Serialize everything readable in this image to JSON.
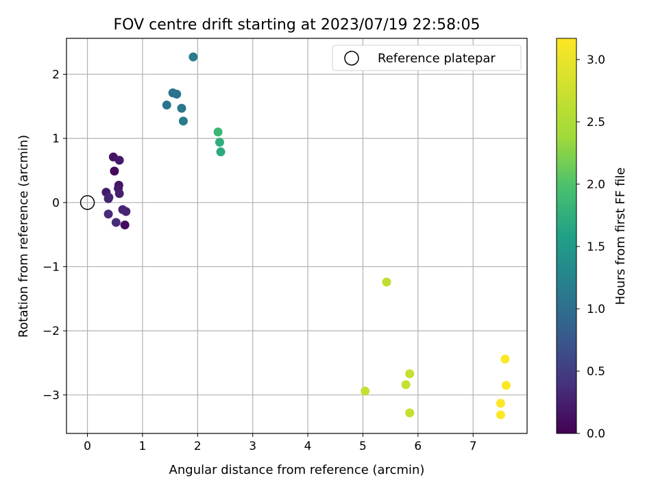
{
  "chart_data": {
    "type": "scatter",
    "title": "FOV centre drift starting at 2023/07/19 22:58:05",
    "xlabel": "Angular distance from reference (arcmin)",
    "ylabel": "Rotation from reference (arcmin)",
    "xlim": [
      -0.38,
      7.98
    ],
    "ylim": [
      -3.6,
      2.56
    ],
    "xticks": [
      0,
      1,
      2,
      3,
      4,
      5,
      6,
      7
    ],
    "yticks": [
      -3,
      -2,
      -1,
      0,
      1,
      2
    ],
    "grid": true,
    "legend": {
      "position": "top-right",
      "entries": [
        "Reference platepar"
      ]
    },
    "reference_point": {
      "x": 0,
      "y": 0,
      "style": "hollow circle"
    },
    "colorbar": {
      "label": "Hours from first FF file",
      "colormap": "viridis",
      "range": [
        0,
        3.17
      ],
      "ticks": [
        0.0,
        0.5,
        1.0,
        1.5,
        2.0,
        2.5,
        3.0
      ],
      "tick_labels": [
        "0.0",
        "0.5",
        "1.0",
        "1.5",
        "2.0",
        "2.5",
        "3.0"
      ]
    },
    "points": [
      {
        "x": 0.47,
        "y": 0.71,
        "h": 0.15
      },
      {
        "x": 0.58,
        "y": 0.66,
        "h": 0.2
      },
      {
        "x": 0.49,
        "y": 0.49,
        "h": 0.05
      },
      {
        "x": 0.57,
        "y": 0.27,
        "h": 0.15
      },
      {
        "x": 0.56,
        "y": 0.22,
        "h": 0.2
      },
      {
        "x": 0.58,
        "y": 0.14,
        "h": 0.25
      },
      {
        "x": 0.34,
        "y": 0.16,
        "h": 0.2
      },
      {
        "x": 0.38,
        "y": 0.06,
        "h": 0.25
      },
      {
        "x": 0.39,
        "y": 0.08,
        "h": 0.3
      },
      {
        "x": 0.64,
        "y": -0.11,
        "h": 0.3
      },
      {
        "x": 0.7,
        "y": -0.14,
        "h": 0.3
      },
      {
        "x": 0.38,
        "y": -0.18,
        "h": 0.35
      },
      {
        "x": 0.52,
        "y": -0.31,
        "h": 0.35
      },
      {
        "x": 0.68,
        "y": -0.35,
        "h": 0.1
      },
      {
        "x": 1.92,
        "y": 2.27,
        "h": 1.15
      },
      {
        "x": 1.55,
        "y": 1.71,
        "h": 1.05
      },
      {
        "x": 1.62,
        "y": 1.69,
        "h": 1.05
      },
      {
        "x": 1.44,
        "y": 1.52,
        "h": 1.05
      },
      {
        "x": 1.71,
        "y": 1.47,
        "h": 1.1
      },
      {
        "x": 1.74,
        "y": 1.27,
        "h": 1.15
      },
      {
        "x": 2.37,
        "y": 1.1,
        "h": 1.85
      },
      {
        "x": 2.4,
        "y": 0.94,
        "h": 1.75
      },
      {
        "x": 2.42,
        "y": 0.79,
        "h": 1.7
      },
      {
        "x": 5.43,
        "y": -1.24,
        "h": 2.65
      },
      {
        "x": 5.04,
        "y": -2.94,
        "h": 2.7
      },
      {
        "x": 5.85,
        "y": -2.67,
        "h": 2.7
      },
      {
        "x": 5.78,
        "y": -2.84,
        "h": 2.7
      },
      {
        "x": 5.85,
        "y": -3.28,
        "h": 2.7
      },
      {
        "x": 7.58,
        "y": -2.44,
        "h": 3.15
      },
      {
        "x": 7.6,
        "y": -2.85,
        "h": 3.15
      },
      {
        "x": 7.5,
        "y": -3.13,
        "h": 3.15
      },
      {
        "x": 7.5,
        "y": -3.31,
        "h": 3.15
      }
    ]
  }
}
